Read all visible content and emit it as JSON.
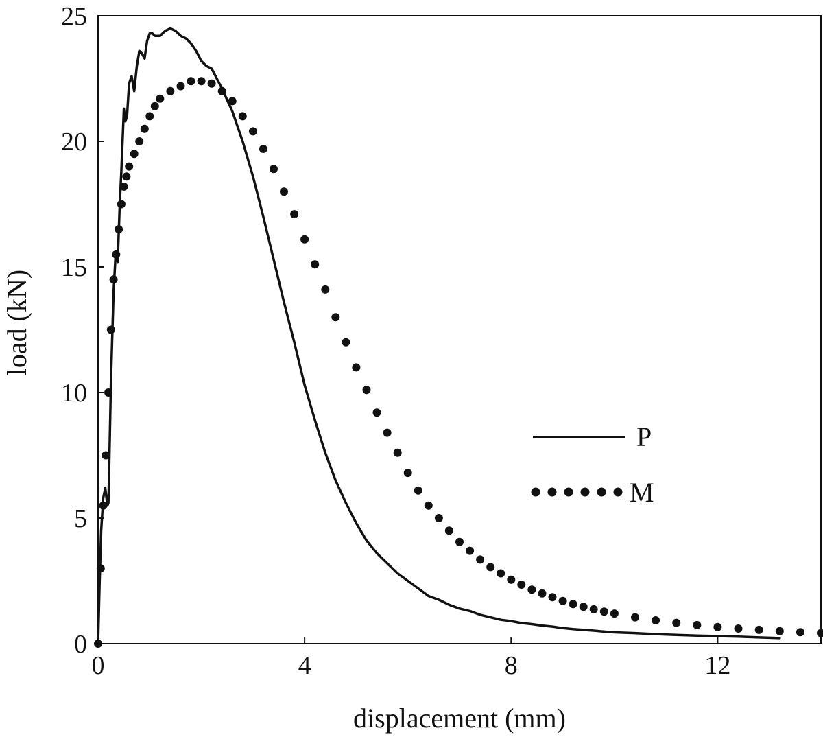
{
  "chart_data": {
    "type": "line",
    "xlabel": "displacement (mm)",
    "ylabel": "load (kN)",
    "xlim": [
      0,
      14
    ],
    "ylim": [
      0,
      25
    ],
    "xticks": [
      0,
      4,
      8,
      12
    ],
    "yticks": [
      0,
      5,
      10,
      15,
      20,
      25
    ],
    "grid": false,
    "legend_position": "center-right",
    "colors": {
      "line": "#111111"
    },
    "series": [
      {
        "name": "P",
        "style": "solid",
        "x": [
          0,
          0.03,
          0.06,
          0.1,
          0.14,
          0.18,
          0.2,
          0.22,
          0.25,
          0.3,
          0.34,
          0.38,
          0.42,
          0.45,
          0.5,
          0.53,
          0.56,
          0.6,
          0.65,
          0.7,
          0.75,
          0.8,
          0.85,
          0.9,
          0.95,
          1.0,
          1.05,
          1.1,
          1.2,
          1.3,
          1.4,
          1.5,
          1.6,
          1.7,
          1.8,
          1.9,
          2.0,
          2.1,
          2.2,
          2.4,
          2.6,
          2.8,
          3.0,
          3.2,
          3.4,
          3.6,
          3.8,
          4.0,
          4.2,
          4.4,
          4.6,
          4.8,
          5.0,
          5.2,
          5.4,
          5.6,
          5.8,
          6.0,
          6.2,
          6.4,
          6.6,
          6.8,
          7.0,
          7.2,
          7.4,
          7.6,
          7.8,
          8.0,
          8.2,
          8.4,
          8.6,
          8.8,
          9.0,
          9.2,
          9.4,
          9.6,
          9.8,
          10.0,
          10.4,
          10.8,
          11.2,
          11.6,
          12.0,
          12.4,
          12.8,
          13.2
        ],
        "y": [
          0,
          2.5,
          4.5,
          5.8,
          6.2,
          5.5,
          5.6,
          7.5,
          10.5,
          14.0,
          15.5,
          15.2,
          17.5,
          18.8,
          21.3,
          20.8,
          21.0,
          22.3,
          22.6,
          22.0,
          23.0,
          23.6,
          23.5,
          23.3,
          24.0,
          24.3,
          24.3,
          24.2,
          24.2,
          24.4,
          24.5,
          24.4,
          24.2,
          24.1,
          23.9,
          23.6,
          23.2,
          23.0,
          22.9,
          22.1,
          21.2,
          20.0,
          18.6,
          17.0,
          15.3,
          13.6,
          12.0,
          10.3,
          8.9,
          7.6,
          6.5,
          5.6,
          4.8,
          4.1,
          3.6,
          3.2,
          2.8,
          2.5,
          2.2,
          1.9,
          1.75,
          1.55,
          1.4,
          1.3,
          1.15,
          1.05,
          0.95,
          0.9,
          0.82,
          0.78,
          0.72,
          0.68,
          0.62,
          0.58,
          0.55,
          0.52,
          0.48,
          0.45,
          0.42,
          0.38,
          0.35,
          0.32,
          0.3,
          0.28,
          0.25,
          0.22
        ]
      },
      {
        "name": "M",
        "style": "dotted",
        "x": [
          0,
          0.05,
          0.1,
          0.15,
          0.2,
          0.25,
          0.3,
          0.35,
          0.4,
          0.45,
          0.5,
          0.55,
          0.6,
          0.7,
          0.8,
          0.9,
          1.0,
          1.1,
          1.2,
          1.4,
          1.6,
          1.8,
          2.0,
          2.2,
          2.4,
          2.6,
          2.8,
          3.0,
          3.2,
          3.4,
          3.6,
          3.8,
          4.0,
          4.2,
          4.4,
          4.6,
          4.8,
          5.0,
          5.2,
          5.4,
          5.6,
          5.8,
          6.0,
          6.2,
          6.4,
          6.6,
          6.8,
          7.0,
          7.2,
          7.4,
          7.6,
          7.8,
          8.0,
          8.2,
          8.4,
          8.6,
          8.8,
          9.0,
          9.2,
          9.4,
          9.6,
          9.8,
          10.0,
          10.4,
          10.8,
          11.2,
          11.6,
          12.0,
          12.4,
          12.8,
          13.2,
          13.6,
          14.0
        ],
        "y": [
          0,
          3.0,
          5.5,
          7.5,
          10.0,
          12.5,
          14.5,
          15.5,
          16.5,
          17.5,
          18.2,
          18.6,
          19.0,
          19.5,
          20.0,
          20.5,
          21.0,
          21.4,
          21.7,
          22.0,
          22.2,
          22.4,
          22.4,
          22.3,
          22.0,
          21.6,
          21.0,
          20.4,
          19.7,
          18.9,
          18.0,
          17.1,
          16.1,
          15.1,
          14.1,
          13.0,
          12.0,
          11.0,
          10.1,
          9.2,
          8.4,
          7.6,
          6.8,
          6.1,
          5.5,
          5.0,
          4.5,
          4.05,
          3.7,
          3.35,
          3.05,
          2.8,
          2.55,
          2.35,
          2.15,
          2.0,
          1.85,
          1.7,
          1.58,
          1.47,
          1.37,
          1.28,
          1.2,
          1.05,
          0.93,
          0.83,
          0.74,
          0.66,
          0.6,
          0.55,
          0.5,
          0.46,
          0.42
        ]
      }
    ]
  }
}
